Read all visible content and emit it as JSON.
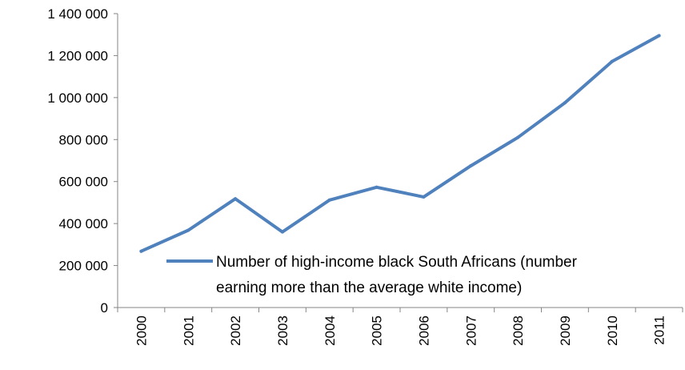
{
  "chart_data": {
    "type": "line",
    "title": "",
    "xlabel": "",
    "ylabel": "",
    "categories": [
      "2000",
      "2001",
      "2002",
      "2003",
      "2004",
      "2005",
      "2006",
      "2007",
      "2008",
      "2009",
      "2010",
      "2011"
    ],
    "series": [
      {
        "name": "Number of high-income black South Africans (number earning more than the average white income)",
        "values": [
          268000,
          368000,
          518000,
          360000,
          512000,
          573000,
          527000,
          675000,
          810000,
          975000,
          1172000,
          1295000
        ]
      }
    ],
    "y_ticks": [
      "0",
      "200 000",
      "400 000",
      "600 000",
      "800 000",
      "1 000 000",
      "1 200 000",
      "1 400 000"
    ],
    "ylim": [
      0,
      1400000
    ],
    "y_step": 200000,
    "grid": false,
    "legend_position": "lower-right",
    "legend_lines": [
      "Number of high-income black South Africans (number",
      "earning more than the average white income)"
    ],
    "colors": {
      "series": "#4f81bd",
      "axis": "#868686",
      "text": "#000000"
    }
  }
}
